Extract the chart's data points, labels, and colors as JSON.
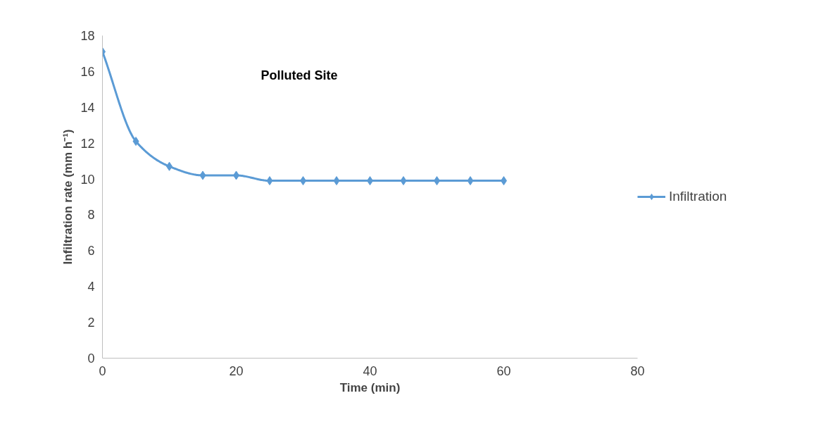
{
  "chart_data": {
    "type": "line",
    "title": "Polluted Site",
    "xlabel": "Time (min)",
    "ylabel": "Infiltration rate (mm h⁻¹)",
    "x": [
      0,
      5,
      10,
      15,
      20,
      25,
      30,
      35,
      40,
      45,
      50,
      55,
      60
    ],
    "series": [
      {
        "name": "Infiltration",
        "color": "#5b9bd5",
        "values": [
          17.1,
          12.1,
          10.7,
          10.2,
          10.2,
          9.9,
          9.9,
          9.9,
          9.9,
          9.9,
          9.9,
          9.9,
          9.9
        ]
      }
    ],
    "xlim": [
      0,
      80
    ],
    "xticks": [
      0,
      20,
      40,
      60,
      80
    ],
    "ylim": [
      0,
      18
    ],
    "yticks": [
      0,
      2,
      4,
      6,
      8,
      10,
      12,
      14,
      16,
      18
    ],
    "grid": false,
    "legend": "right",
    "marker": "diamond",
    "line_style": "solid"
  }
}
